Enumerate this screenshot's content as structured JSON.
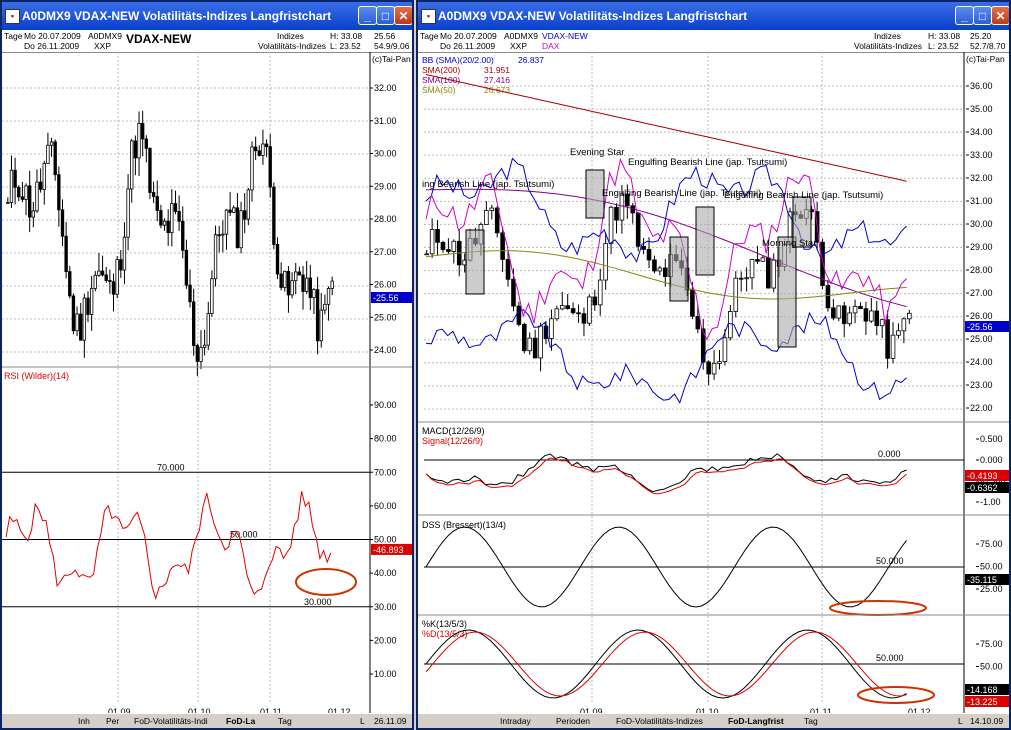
{
  "left_window": {
    "title": "A0DMX9 VDAX-NEW Volatilitäts-Indizes Langfristchart",
    "info": {
      "tage_label": "Tage",
      "date_from": "Mo 20.07.2009",
      "date_to": "Do 26.11.2009",
      "symbol_id": "A0DMX9",
      "exchange": "XXP",
      "symbol_name": "VDAX-NEW",
      "group": "Indizes",
      "group2": "Volatilitäts-Indizes",
      "high": "H: 33.08",
      "low": "L: 23.52",
      "last": "25.56",
      "range": "54.9/9.06",
      "copyright": "(c)Tai-Pan"
    },
    "price_axis": [
      "32.00",
      "31.00",
      "30.00",
      "29.00",
      "28.00",
      "27.00",
      "26.00",
      "25.00",
      "24.00"
    ],
    "price_marker": "-25.56",
    "rsi": {
      "label": "RSI (Wilder)(14)",
      "axis": [
        "90.00",
        "80.00",
        "70.00",
        "60.00",
        "50.00",
        "40.00",
        "30.00",
        "20.00",
        "10.00"
      ],
      "levels": [
        "70.000",
        "50.000",
        "30.000"
      ],
      "marker": "-46.893"
    },
    "x_ticks": [
      "01.09",
      "01.10",
      "01.11",
      "01.12"
    ],
    "taskbar": [
      "Inh",
      "Per",
      "FoD-Volatilitäts-Indi",
      "FoD-La",
      "Tag",
      "26.11.09",
      "L"
    ]
  },
  "right_window": {
    "title": "A0DMX9 VDAX-NEW Volatilitäts-Indizes Langfristchart",
    "info": {
      "tage_label": "Tage",
      "date_from": "Mo 20.07.2009",
      "date_to": "Do 26.11.2009",
      "symbol_id": "A0DMX9",
      "exchange": "XXP",
      "symbol_name": "VDAX-NEW",
      "symbol_name2": "DAX",
      "group": "Indizes",
      "group2": "Volatilitäts-Indizes",
      "high": "H: 33.08",
      "low": "L: 23.52",
      "last": "25.20",
      "range": "52.7/8.70",
      "copyright": "(c)Tai-Pan"
    },
    "legend": [
      {
        "name": "BB (SMA)(20/2.00)",
        "value": "26.837",
        "color": "#0000cc"
      },
      {
        "name": "SMA(200)",
        "value": "31.951",
        "color": "#aa0000"
      },
      {
        "name": "SMA(100)",
        "value": "27.416",
        "color": "#880088"
      },
      {
        "name": "SMA(50)",
        "value": "26.673",
        "color": "#888800"
      }
    ],
    "price_axis": [
      "36.00",
      "35.00",
      "34.00",
      "33.00",
      "32.00",
      "31.00",
      "30.00",
      "29.00",
      "28.00",
      "27.00",
      "26.00",
      "25.00",
      "24.00",
      "23.00",
      "22.00"
    ],
    "price_marker": "-25.56",
    "annotations": [
      "Evening Star",
      "Engulfing Bearish Line (jap. Tsutsumi)",
      "ing Bearish Line (jap. Tsutsumi)",
      "Engulfing Bearish Line (jap. Tsutsumi)",
      "Engulfing Bearish Line (jap. Tsutsumi)",
      "Morning Star"
    ],
    "macd": {
      "label": "MACD(12/26/9)",
      "signal": "Signal(12/26/9)",
      "axis": [
        "0.500",
        "0.000",
        "-0.500",
        "-1.00"
      ],
      "level": "0.000",
      "marker1": "-0.4193",
      "marker2": "-0.6362"
    },
    "dss": {
      "label": "DSS (Bressert)(13/4)",
      "axis": [
        "75.00",
        "50.00",
        "25.00"
      ],
      "level": "50.000",
      "marker": "-35.115"
    },
    "stoch": {
      "label_k": "%K(13/5/3)",
      "label_d": "%D(13/5/3)",
      "axis": [
        "75.00",
        "50.00",
        "25.00"
      ],
      "level": "50.000",
      "marker1": "-14.168",
      "marker2": "-13.225"
    },
    "x_ticks": [
      "01.09",
      "01.10",
      "01.11",
      "01.12"
    ],
    "taskbar": [
      "Intraday",
      "Perioden",
      "FoD-Volatilitäts-Indizes",
      "FoD-Langfrist",
      "Tag",
      "14.10.09",
      "L"
    ]
  },
  "colors": {
    "titlebar": "#0a40c8",
    "candle": "#000000",
    "rsi": "#dd0000",
    "ellipse": "#cc3300",
    "marker_bg": "#0000cc"
  }
}
